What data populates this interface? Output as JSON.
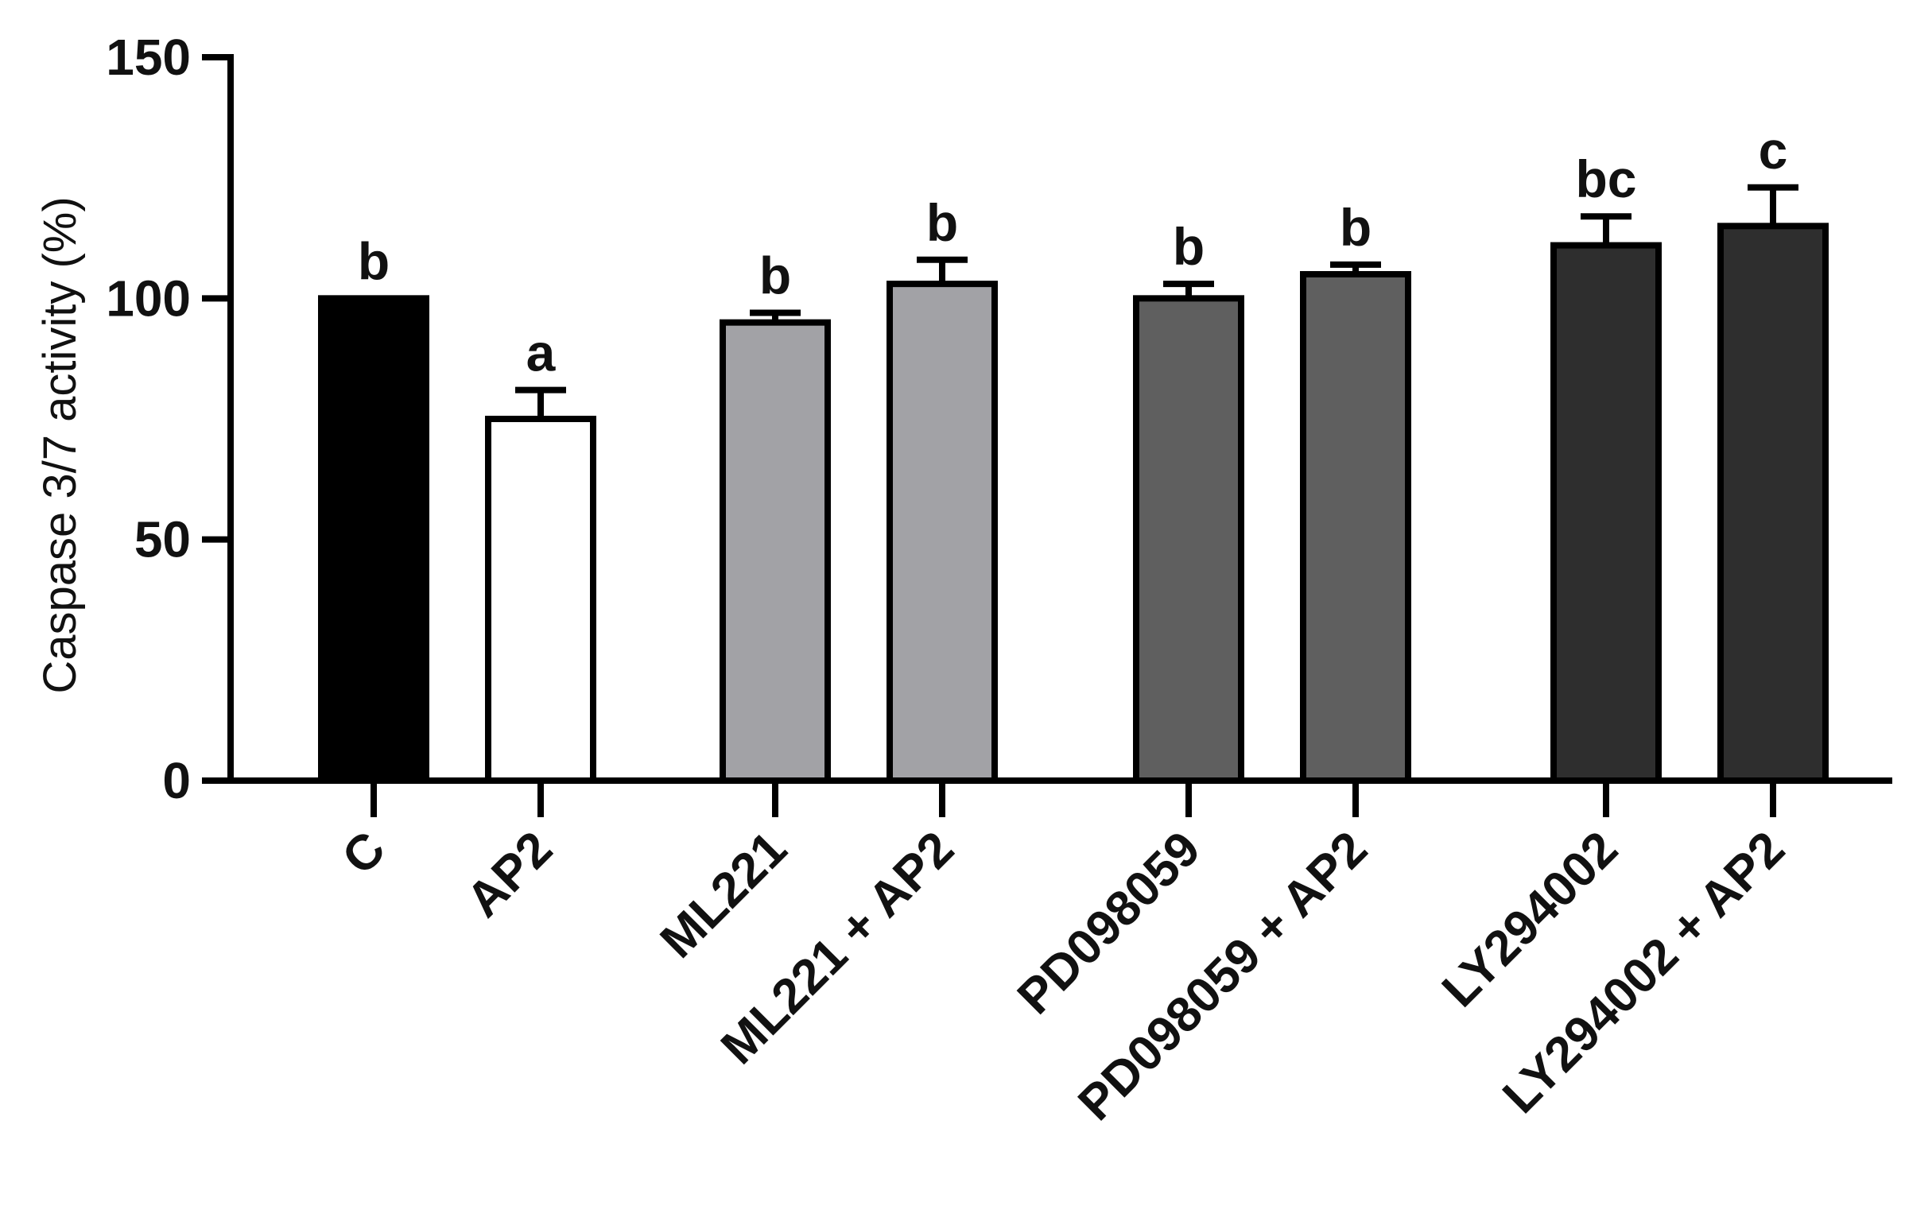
{
  "chart_data": {
    "type": "bar",
    "title": "",
    "xlabel": "",
    "ylabel": "Caspase 3/7 activity (%)",
    "ylim": [
      0,
      150
    ],
    "yticks": [
      0,
      50,
      100,
      150
    ],
    "categories": [
      "C",
      "AP2",
      "ML221",
      "ML221 + AP2",
      "PD098059",
      "PD098059 + AP2",
      "LY294002",
      "LY294002 + AP2"
    ],
    "values": [
      100,
      75,
      95,
      103,
      100,
      105,
      111,
      115
    ],
    "errors": [
      0,
      6,
      2,
      5,
      3,
      2,
      6,
      8
    ],
    "significance_letters": [
      "b",
      "a",
      "b",
      "b",
      "b",
      "b",
      "bc",
      "c"
    ],
    "colors": [
      "#000000",
      "#ffffff",
      "#a2a2a6",
      "#a2a2a6",
      "#5f5f5f",
      "#5f5f5f",
      "#2e2e2e",
      "#2e2e2e"
    ],
    "grid": false,
    "legend": "none"
  }
}
